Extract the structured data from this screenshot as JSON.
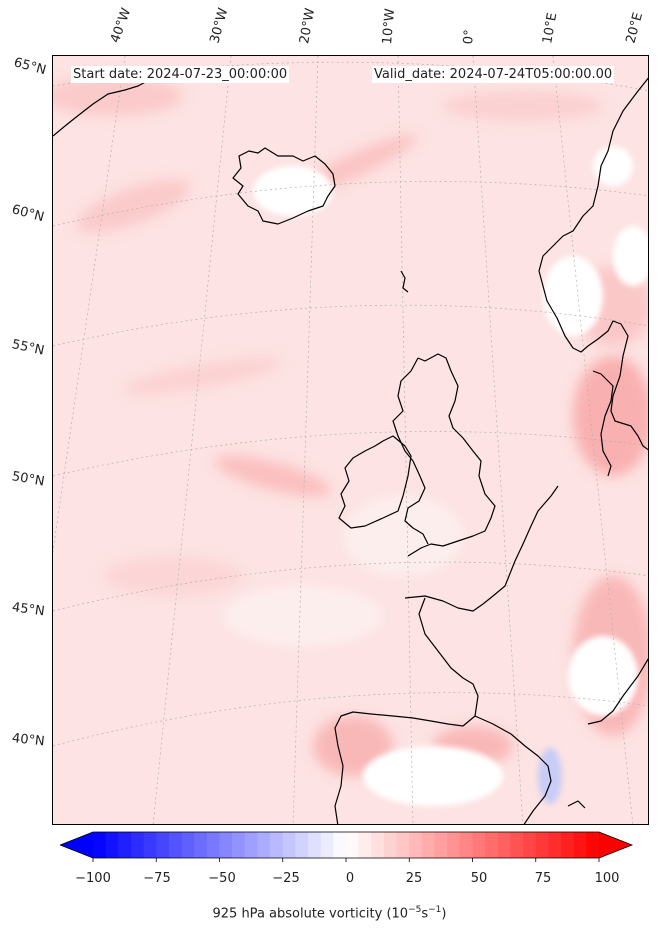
{
  "header": {
    "start_date": "Start date: 2024-07-23_00:00:00",
    "valid_date": "Valid_date: 2024-07-24T05:00:00.00"
  },
  "longitude_labels": [
    "40°W",
    "30°W",
    "20°W",
    "10°W",
    "0°",
    "10°E",
    "20°E"
  ],
  "latitude_labels": [
    "65°N",
    "60°N",
    "55°N",
    "50°N",
    "45°N",
    "40°N"
  ],
  "colorbar": {
    "ticks": [
      "−100",
      "−75",
      "−50",
      "−25",
      "0",
      "25",
      "50",
      "75",
      "100"
    ],
    "min": -100,
    "max": 100,
    "label_main": "925 hPa absolute vorticity (10",
    "label_exp1": "−5",
    "label_mid": "s",
    "label_exp2": "−1",
    "label_end": ")",
    "colors": {
      "negative": "#0000ff",
      "zero": "#ffffff",
      "positive": "#ff0000"
    }
  },
  "map": {
    "background_color": "#fde3e3",
    "coastline_color": "#000000",
    "gridline_color": "#b0b0b0"
  }
}
